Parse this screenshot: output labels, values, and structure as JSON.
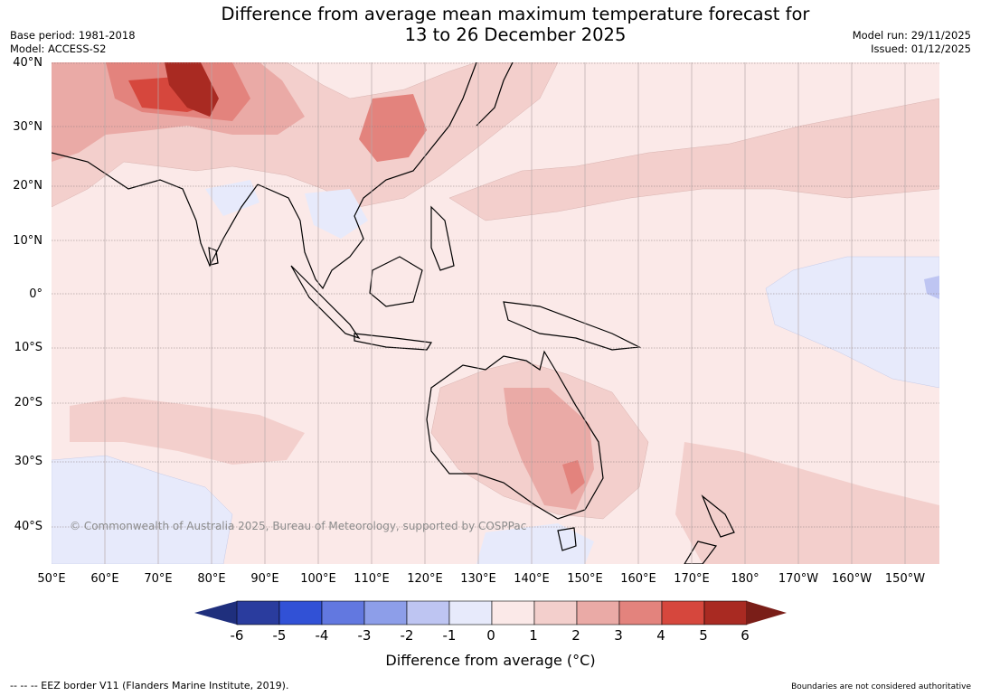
{
  "title": {
    "line1": "Difference from average mean maximum temperature forecast for",
    "line2": "13 to 26 December 2025"
  },
  "meta": {
    "base_period": "Base period: 1981-2018",
    "model": "Model: ACCESS-S2",
    "model_run": "Model run: 29/11/2025",
    "issued": "Issued: 01/12/2025"
  },
  "latitude_labels": [
    "40°N",
    "30°N",
    "20°N",
    "10°N",
    "0°",
    "10°S",
    "20°S",
    "30°S",
    "40°S"
  ],
  "longitude_labels": [
    "50°E",
    "60°E",
    "70°E",
    "80°E",
    "90°E",
    "100°E",
    "110°E",
    "120°E",
    "130°E",
    "140°E",
    "150°E",
    "160°E",
    "170°E",
    "180°",
    "170°W",
    "160°W",
    "150°W"
  ],
  "colorbar": {
    "ticks": [
      "-6",
      "-5",
      "-4",
      "-3",
      "-2",
      "-1",
      "0",
      "1",
      "2",
      "3",
      "4",
      "5",
      "6"
    ],
    "colors": [
      "#2a3c9e",
      "#3151d6",
      "#6278e0",
      "#8d9ee9",
      "#bec5f2",
      "#e7eafb",
      "#fbe9e8",
      "#f3cfcc",
      "#eaaaa6",
      "#e3837d",
      "#d6473d",
      "#a92a22"
    ],
    "extend_low_color": "#1f2f7d",
    "extend_high_color": "#7a1e18",
    "label": "Difference from average (°C)"
  },
  "copyright": "© Commonwealth of Australia 2025, Bureau of Meteorology, supported by COSPPac",
  "footer": {
    "eez_note": "--  --  -- EEZ border V11 (Flanders Marine Institute, 2019).",
    "boundaries_note": "Boundaries are not considered authoritative"
  },
  "map": {
    "background_anomaly_color": "#fbe9e8",
    "ocean_note": ""
  }
}
